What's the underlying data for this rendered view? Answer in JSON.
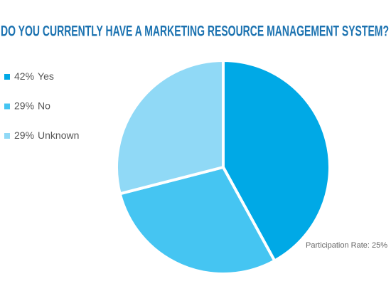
{
  "chart_data": {
    "type": "pie",
    "title": "DO YOU CURRENTLY HAVE A MARKETING RESOURCE MANAGEMENT SYSTEM?",
    "categories": [
      "Yes",
      "No",
      "Unknown"
    ],
    "values": [
      42,
      29,
      29
    ],
    "value_labels": [
      "42%",
      "29%",
      "29%"
    ],
    "colors": [
      "#00a9e6",
      "#45c5f2",
      "#90d9f6"
    ],
    "annotation": "Participation Rate: 25%",
    "legend": "left"
  }
}
